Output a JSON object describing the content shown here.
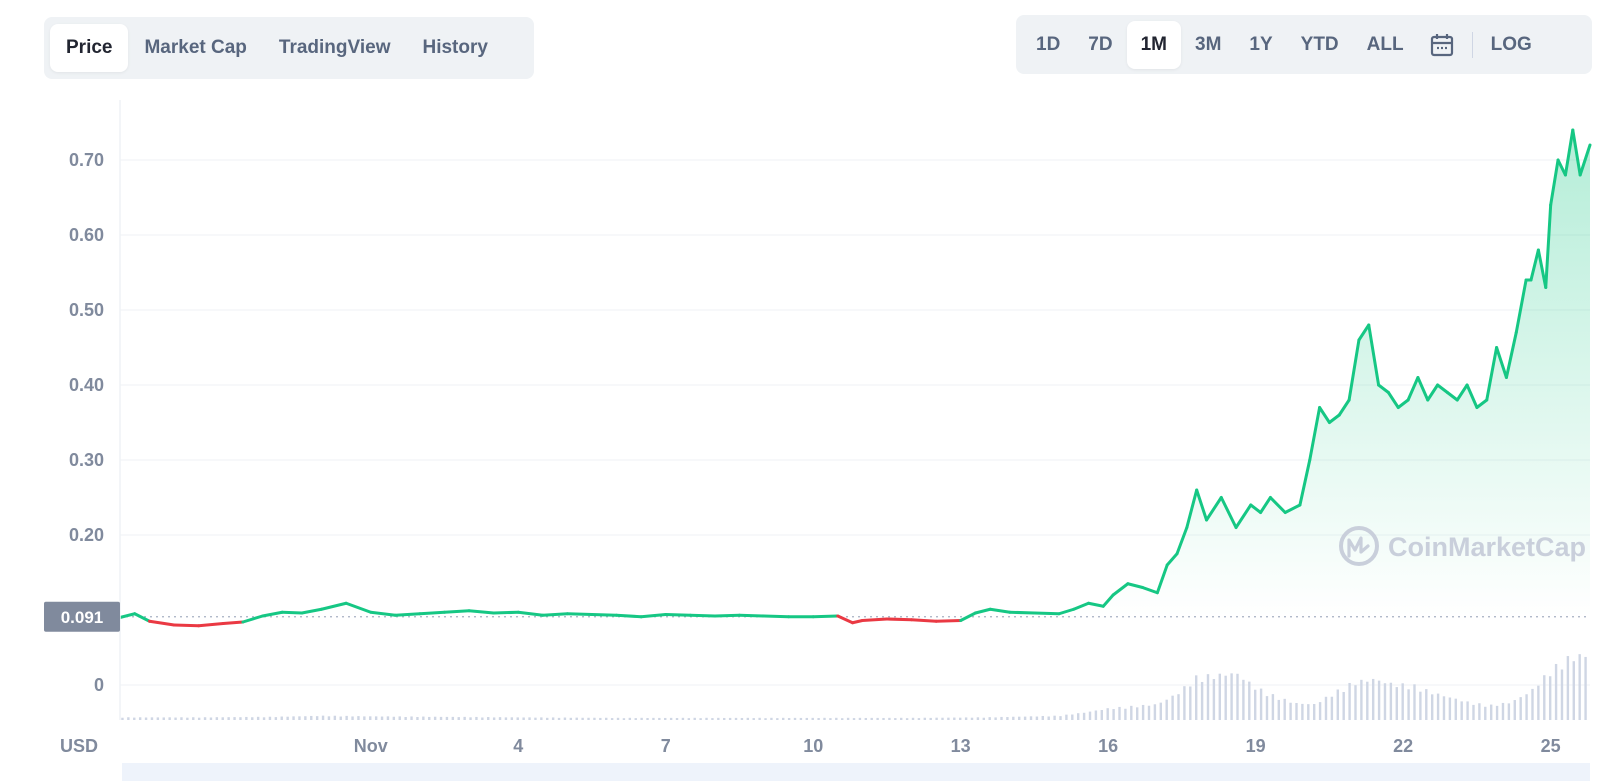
{
  "tabs_left": [
    {
      "label": "Price",
      "active": true
    },
    {
      "label": "Market Cap",
      "active": false
    },
    {
      "label": "TradingView",
      "active": false
    },
    {
      "label": "History",
      "active": false
    }
  ],
  "ranges": [
    {
      "label": "1D",
      "active": false
    },
    {
      "label": "7D",
      "active": false
    },
    {
      "label": "1M",
      "active": true
    },
    {
      "label": "3M",
      "active": false
    },
    {
      "label": "1Y",
      "active": false
    },
    {
      "label": "YTD",
      "active": false
    },
    {
      "label": "ALL",
      "active": false
    }
  ],
  "calendar_icon": "calendar-icon",
  "log_label": "LOG",
  "currency_label": "USD",
  "watermark": "CoinMarketCap",
  "colors": {
    "up": "#16c784",
    "down": "#ea3943",
    "price_tag": "#808a9d",
    "volume": "#cfd6e4"
  },
  "chart_data": {
    "type": "line",
    "title": "",
    "xlabel": "USD",
    "ylabel": "",
    "y_ticks": [
      "0.70",
      "0.60",
      "0.50",
      "0.40",
      "0.30",
      "0.20",
      "0"
    ],
    "y_tick_values": [
      0.7,
      0.6,
      0.5,
      0.4,
      0.3,
      0.2,
      0
    ],
    "x_ticks": [
      "Nov",
      "4",
      "7",
      "10",
      "13",
      "16",
      "19",
      "22",
      "25"
    ],
    "x_tick_days": [
      1,
      4,
      7,
      10,
      13,
      16,
      19,
      22,
      25
    ],
    "x_range_days": [
      -4.1,
      25.8
    ],
    "ylim": [
      -0.05,
      0.79
    ],
    "reference_price": 0.091,
    "reference_label": "0.091",
    "grid": true,
    "series": [
      {
        "x": [
          -4.1,
          -3.8,
          -3.5,
          -3.0,
          -2.5,
          -2.0,
          -1.6,
          -1.2,
          -0.8,
          -0.4,
          0.0,
          0.5,
          1.0,
          1.5,
          2.0,
          2.5,
          3.0,
          3.5,
          4.0,
          4.5,
          5.0,
          5.5,
          6.0,
          6.5,
          7.0,
          7.5,
          8.0,
          8.5,
          9.0,
          9.5,
          10.0,
          10.5,
          10.8,
          11.0,
          11.5,
          12.0,
          12.5,
          13.0,
          13.3,
          13.6,
          14.0,
          14.5,
          15.0,
          15.3,
          15.6,
          15.9,
          16.1,
          16.4,
          16.7,
          17.0,
          17.2,
          17.4,
          17.6,
          17.8,
          18.0,
          18.3,
          18.6,
          18.9,
          19.1,
          19.3,
          19.6,
          19.9,
          20.1,
          20.3,
          20.5,
          20.7,
          20.9,
          21.1,
          21.3,
          21.5,
          21.7,
          21.9,
          22.1,
          22.3,
          22.5,
          22.7,
          22.9,
          23.1,
          23.3,
          23.5,
          23.7,
          23.9,
          24.1,
          24.3,
          24.5,
          24.6,
          24.75,
          24.9,
          25.0,
          25.15,
          25.3,
          25.45,
          25.6,
          25.8
        ],
        "y": [
          0.09,
          0.095,
          0.085,
          0.08,
          0.079,
          0.082,
          0.084,
          0.092,
          0.097,
          0.096,
          0.101,
          0.109,
          0.097,
          0.093,
          0.095,
          0.097,
          0.099,
          0.096,
          0.097,
          0.093,
          0.095,
          0.094,
          0.093,
          0.091,
          0.094,
          0.093,
          0.092,
          0.093,
          0.092,
          0.091,
          0.091,
          0.092,
          0.083,
          0.086,
          0.088,
          0.087,
          0.085,
          0.086,
          0.096,
          0.101,
          0.097,
          0.096,
          0.095,
          0.101,
          0.109,
          0.105,
          0.12,
          0.135,
          0.13,
          0.123,
          0.16,
          0.175,
          0.21,
          0.26,
          0.22,
          0.25,
          0.21,
          0.24,
          0.23,
          0.25,
          0.23,
          0.24,
          0.3,
          0.37,
          0.35,
          0.36,
          0.38,
          0.46,
          0.48,
          0.4,
          0.39,
          0.37,
          0.38,
          0.41,
          0.38,
          0.4,
          0.39,
          0.38,
          0.4,
          0.37,
          0.38,
          0.45,
          0.41,
          0.47,
          0.54,
          0.54,
          0.58,
          0.53,
          0.64,
          0.7,
          0.68,
          0.74,
          0.68,
          0.72
        ]
      }
    ],
    "volume": {
      "x": [
        -4.0,
        -2.5,
        -1.0,
        0.0,
        1.0,
        2.5,
        4.0,
        6.0,
        8.0,
        10.0,
        12.0,
        13.5,
        15.0,
        15.5,
        16.0,
        16.5,
        17.0,
        17.4,
        17.8,
        18.2,
        18.6,
        19.0,
        19.4,
        19.8,
        20.2,
        20.6,
        21.0,
        21.4,
        21.8,
        22.2,
        22.6,
        23.0,
        23.4,
        23.8,
        24.2,
        24.6,
        25.0,
        25.4,
        25.8
      ],
      "v": [
        0.05,
        0.05,
        0.06,
        0.08,
        0.07,
        0.06,
        0.05,
        0.04,
        0.04,
        0.04,
        0.04,
        0.05,
        0.08,
        0.14,
        0.22,
        0.26,
        0.3,
        0.5,
        0.82,
        0.85,
        0.9,
        0.62,
        0.45,
        0.32,
        0.3,
        0.52,
        0.72,
        0.78,
        0.68,
        0.66,
        0.52,
        0.42,
        0.32,
        0.28,
        0.34,
        0.55,
        0.95,
        1.2,
        1.25
      ]
    }
  }
}
